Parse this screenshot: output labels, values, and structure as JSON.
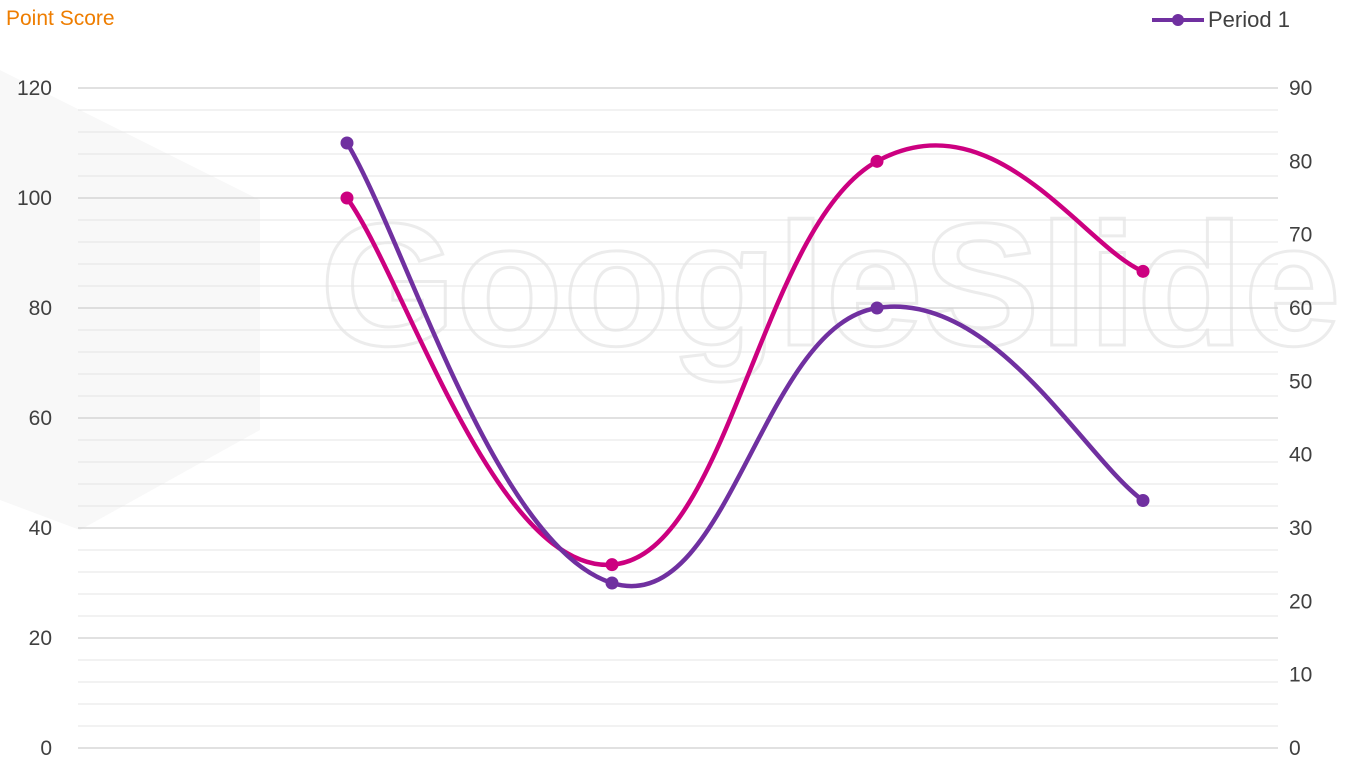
{
  "chart_data": {
    "type": "line",
    "title": "Point Score",
    "categories": [
      "",
      "",
      "",
      ""
    ],
    "left_axis": {
      "ylim": [
        0,
        120
      ],
      "ticks": [
        0,
        20,
        40,
        60,
        80,
        100,
        120
      ]
    },
    "right_axis": {
      "ylim": [
        0,
        90
      ],
      "ticks": [
        0,
        10,
        20,
        30,
        40,
        50,
        60,
        70,
        80,
        90
      ]
    },
    "series": [
      {
        "name": "Period 1",
        "axis": "left",
        "color": "#7030a0",
        "values": [
          110,
          30,
          80,
          45
        ]
      },
      {
        "axis": "right",
        "color": "#cc0080",
        "values": [
          75,
          25,
          80,
          65
        ]
      }
    ],
    "grid": true,
    "legend_position": "top-right",
    "smooth": true
  },
  "watermark": {
    "text": "GoogleSlides"
  }
}
